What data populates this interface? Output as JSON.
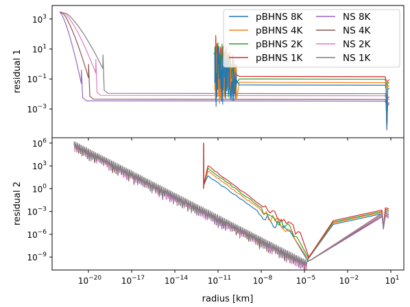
{
  "chart_data": {
    "type": "line",
    "shared_x": {
      "label": "radius [km]",
      "scale": "log",
      "lim": [
        3e-23,
        80
      ],
      "ticks": [
        1e-20,
        1e-17,
        1e-14,
        1e-11,
        1e-08,
        1e-05,
        0.01,
        10
      ],
      "tick_labels": [
        [
          "10",
          "−20"
        ],
        [
          "10",
          "−17"
        ],
        [
          "10",
          "−14"
        ],
        [
          "10",
          "−11"
        ],
        [
          "10",
          "−8"
        ],
        [
          "10",
          "−5"
        ],
        [
          "10",
          "−2"
        ],
        [
          "10",
          "1"
        ]
      ]
    },
    "legend": {
      "placement": "top-right",
      "columns": 2,
      "entries": [
        "pBHNS 8K",
        "pBHNS 4K",
        "pBHNS 2K",
        "pBHNS 1K",
        "NS 8K",
        "NS 4K",
        "NS 2K",
        "NS 1K"
      ]
    },
    "series": [
      {
        "name": "pBHNS 8K",
        "color": "#1f77b4",
        "kind": "pBHNS",
        "level": 0
      },
      {
        "name": "pBHNS 4K",
        "color": "#ff7f0e",
        "kind": "pBHNS",
        "level": 1
      },
      {
        "name": "pBHNS 2K",
        "color": "#2ca02c",
        "kind": "pBHNS",
        "level": 2
      },
      {
        "name": "pBHNS 1K",
        "color": "#d62728",
        "kind": "pBHNS",
        "level": 3
      },
      {
        "name": "NS 8K",
        "color": "#9467bd",
        "kind": "NS",
        "level": 0
      },
      {
        "name": "NS 4K",
        "color": "#8c564b",
        "kind": "NS",
        "level": 1
      },
      {
        "name": "NS 2K",
        "color": "#e377c2",
        "kind": "NS",
        "level": 2
      },
      {
        "name": "NS 1K",
        "color": "#7f7f7f",
        "kind": "NS",
        "level": 3
      }
    ],
    "panels": [
      {
        "ylabel": "residual 1",
        "yscale": "log",
        "ylim": [
          1.2e-05,
          8000
        ],
        "ticks": [
          0.001,
          0.1,
          10,
          1000
        ],
        "tick_labels": [
          [
            "10",
            "−3"
          ],
          [
            "10",
            "−1"
          ],
          [
            "10",
            "1"
          ],
          [
            "10",
            "3"
          ]
        ],
        "curves": {
          "NS": {
            "start_x": 1e-22,
            "start_y": 3000,
            "jump_x": [
              3.2e-21,
              1e-20,
              3.2e-20,
              1e-19
            ],
            "drop_y": [
              0.05,
              0.12,
              0.25,
              0.5
            ],
            "plateau_y": [
              0.0035,
              0.0045,
              0.008,
              0.011
            ],
            "end_x": 8,
            "dip_x": 5,
            "dip_y": 4e-05
          },
          "pBHNS": {
            "start_x": 1e-11,
            "start_y": 5,
            "noisy_x": [
              6e-12,
              2e-10
            ],
            "plateau_y": [
              0.04,
              0.06,
              0.1,
              0.15
            ],
            "end_x": 8,
            "dip_x": 5,
            "dip_y": 6e-05
          }
        }
      },
      {
        "ylabel": "residual 2",
        "yscale": "log",
        "ylim": [
          2e-11,
          5000000.0
        ],
        "ticks": [
          1e-09,
          1e-06,
          0.001,
          1,
          1000,
          1000000.0
        ],
        "tick_labels": [
          [
            "10",
            "−9"
          ],
          [
            "10",
            "−6"
          ],
          [
            "10",
            "−3"
          ],
          [
            "10",
            "0"
          ],
          [
            "10",
            "3"
          ],
          [
            "10",
            "6"
          ]
        ],
        "curves": {
          "NS": {
            "start_x": 1e-21,
            "start_y": 1000000.0,
            "min_x": 1.5e-05,
            "min_y": 2e-10,
            "rise_end_x": 6,
            "rise_end_y": [
              0.0002,
              0.0003,
              0.00045,
              0.0006
            ],
            "dip_x": 3,
            "dip_y": 5e-06
          },
          "pBHNS": {
            "spike_x": 1e-12,
            "spike_top": 1000000.0,
            "spike_bottom": 1,
            "peak_y": [
              50,
              200,
              500,
              1000
            ],
            "peak_x": 2e-12,
            "fall_end_x": [
              1e-06,
              2e-06,
              3e-06,
              5e-06
            ],
            "fall_end_y": [
              1e-06,
              1e-06,
              1e-06,
              1e-06
            ],
            "rise_end_y": [
              0.001,
              0.0015,
              0.002,
              0.003
            ]
          }
        }
      }
    ]
  }
}
